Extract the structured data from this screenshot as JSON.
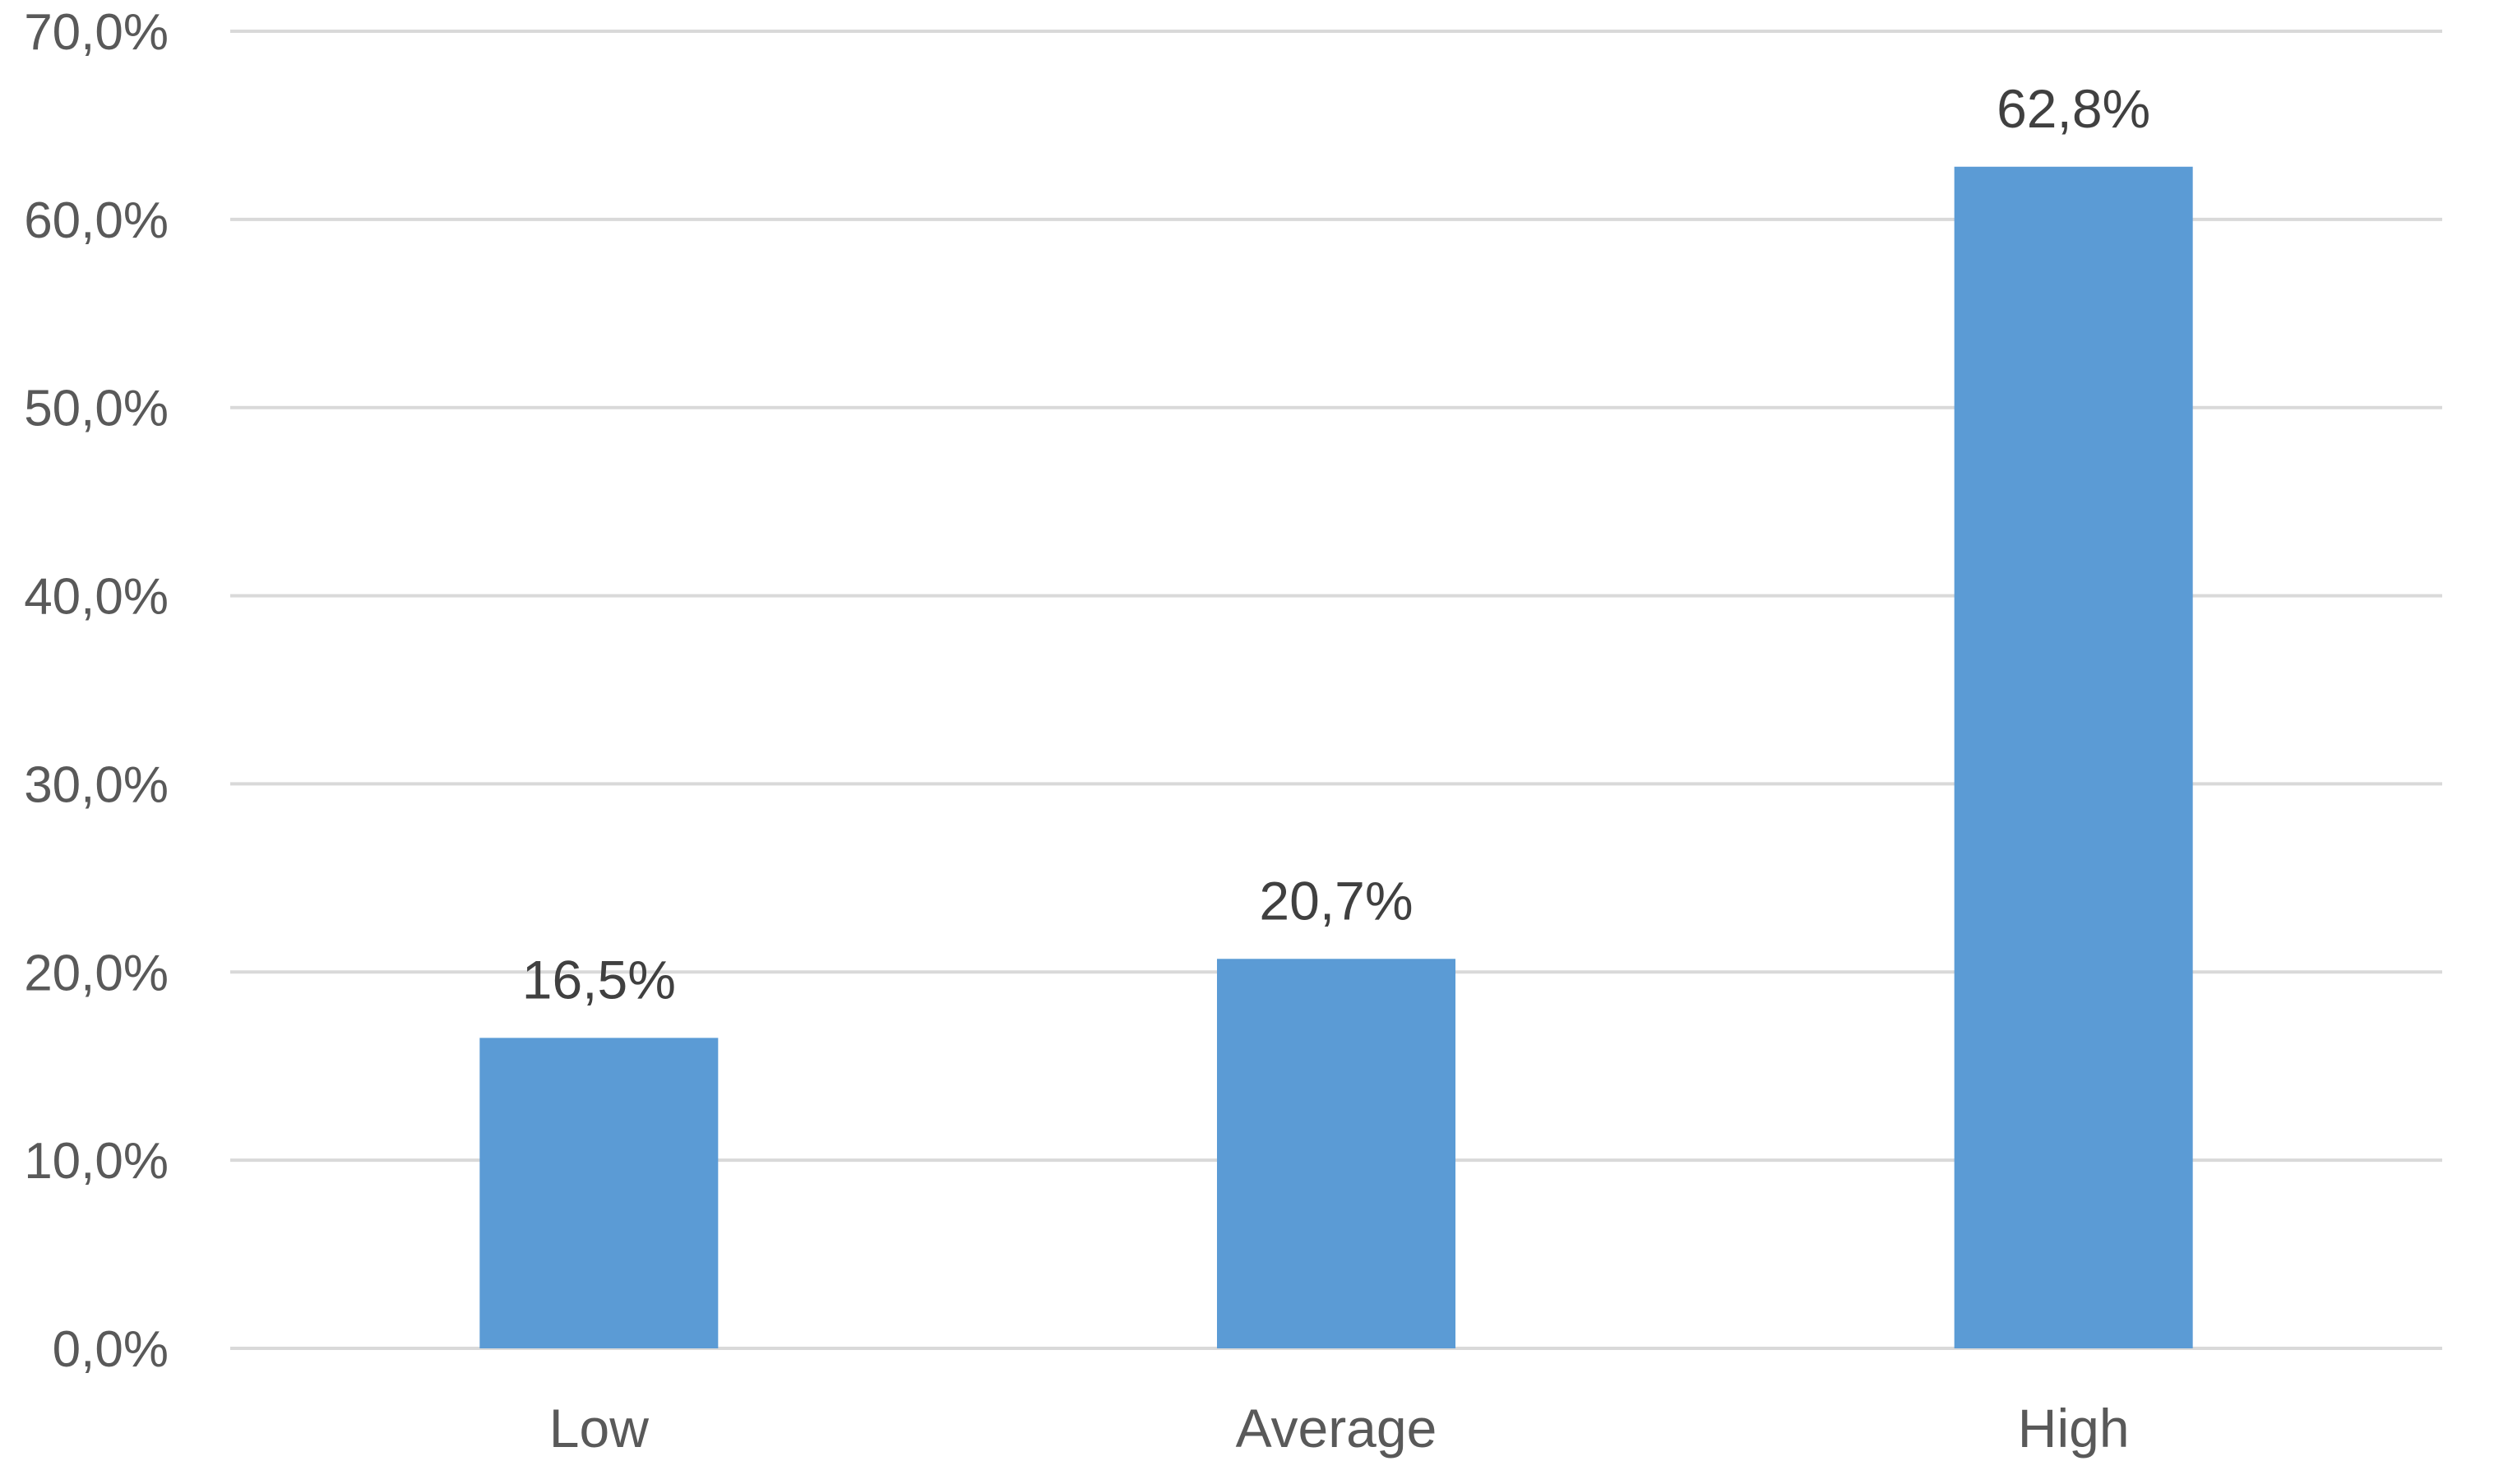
{
  "chart_data": {
    "type": "bar",
    "title": "",
    "xlabel": "",
    "ylabel": "",
    "categories": [
      "Low",
      "Average",
      "High"
    ],
    "values": [
      16.5,
      20.7,
      62.8
    ],
    "data_labels": [
      "16,5%",
      "20,7%",
      "62,8%"
    ],
    "ylim": [
      0,
      70
    ],
    "y_ticks": [
      0,
      10,
      20,
      30,
      40,
      50,
      60,
      70
    ],
    "y_tick_labels": [
      "0,0%",
      "10,0%",
      "20,0%",
      "30,0%",
      "40,0%",
      "50,0%",
      "60,0%",
      "70,0%"
    ],
    "grid": true,
    "legend": "none",
    "bar_color": "#5b9bd5",
    "gridline_color": "#d9d9d9",
    "text_color": "#595959"
  }
}
